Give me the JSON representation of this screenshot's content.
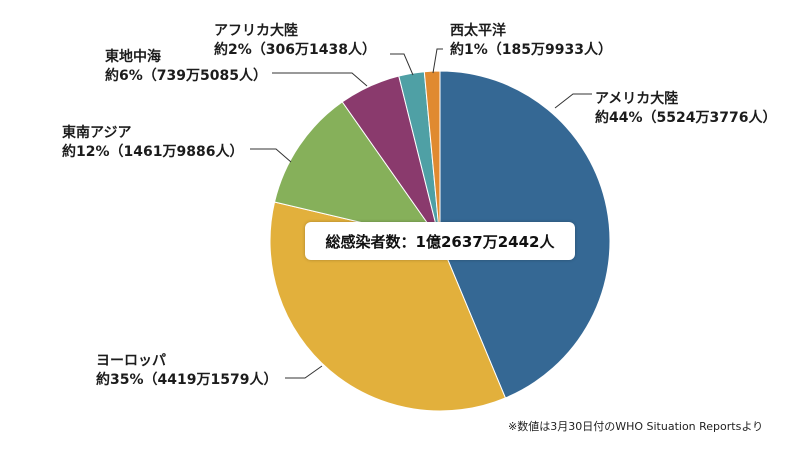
{
  "chart_data": {
    "type": "pie",
    "title": "",
    "center_label": "総感染者数：1億2637万2442人",
    "start_angle_deg": 0,
    "direction": "clockwise",
    "slices": [
      {
        "name": "アメリカ大陸",
        "percent_label": "約44%",
        "count_label": "5524万3776人",
        "value": 55243776,
        "color": "#356894"
      },
      {
        "name": "ヨーロッパ",
        "percent_label": "約35%",
        "count_label": "4419万1579人",
        "value": 44191579,
        "color": "#e2b03c"
      },
      {
        "name": "東南アジア",
        "percent_label": "約12%",
        "count_label": "1461万9886人",
        "value": 14619886,
        "color": "#86b05a"
      },
      {
        "name": "東地中海",
        "percent_label": "約6%",
        "count_label": "739万5085人",
        "value": 7395085,
        "color": "#8a3a6d"
      },
      {
        "name": "アフリカ大陸",
        "percent_label": "約2%",
        "count_label": "306万1438人",
        "value": 3061438,
        "color": "#4fa0a5"
      },
      {
        "name": "西太平洋",
        "percent_label": "約1%",
        "count_label": "185万9933人",
        "value": 1859933,
        "color": "#e08a30"
      }
    ],
    "total": 126372442,
    "note": "※数値は3月30日付のWHO Situation Reportsより"
  },
  "labels": {
    "america": {
      "name": "アメリカ大陸",
      "value": "約44%（5524万3776人）"
    },
    "europe": {
      "name": "ヨーロッパ",
      "value": "約35%（4419万1579人）"
    },
    "se_asia": {
      "name": "東南アジア",
      "value": "約12%（1461万9886人）"
    },
    "e_med": {
      "name": "東地中海",
      "value": "約6%（739万5085人）"
    },
    "africa": {
      "name": "アフリカ大陸",
      "value": "約2%（306万1438人）"
    },
    "w_pacific": {
      "name": "西太平洋",
      "value": "約1%（185万9933人）"
    }
  },
  "total_label": "総感染者数：1億2637万2442人",
  "footnote": "※数値は3月30日付のWHO Situation Reportsより"
}
